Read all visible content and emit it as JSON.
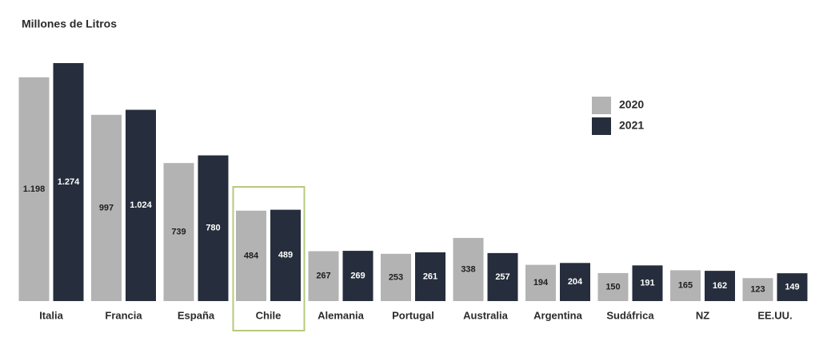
{
  "chart_data": {
    "type": "bar",
    "title": "Millones de Litros",
    "categories": [
      "Italia",
      "Francia",
      "España",
      "Chile",
      "Alemania",
      "Portugal",
      "Australia",
      "Argentina",
      "Sudáfrica",
      "NZ",
      "EE.UU."
    ],
    "series": [
      {
        "name": "2020",
        "color": "#b3b3b3",
        "values": [
          1198,
          997,
          739,
          484,
          267,
          253,
          338,
          194,
          150,
          165,
          123
        ],
        "value_labels": [
          "1.198",
          "997",
          "739",
          "484",
          "267",
          "253",
          "338",
          "194",
          "150",
          "165",
          "123"
        ]
      },
      {
        "name": "2021",
        "color": "#262e3d",
        "values": [
          1274,
          1024,
          780,
          489,
          269,
          261,
          257,
          204,
          191,
          162,
          149
        ],
        "value_labels": [
          "1.274",
          "1.024",
          "780",
          "489",
          "269",
          "261",
          "257",
          "204",
          "191",
          "162",
          "149"
        ]
      }
    ],
    "highlight": {
      "category": 3,
      "color": "#b7c97c"
    },
    "grid": false
  }
}
